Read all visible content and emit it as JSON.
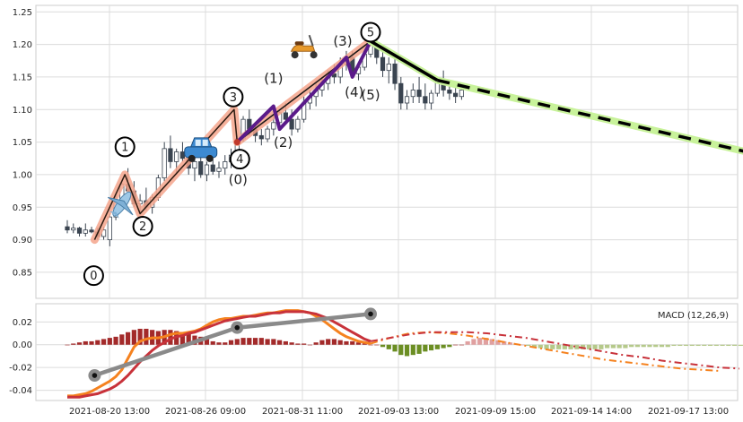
{
  "chart_data": [
    {
      "type": "candlestick",
      "panel": "price",
      "ylim": [
        0.81,
        1.26
      ],
      "yticks": [
        0.85,
        0.9,
        0.95,
        1.0,
        1.05,
        1.1,
        1.15,
        1.2,
        1.25
      ],
      "grid": true,
      "candles_ohlc": [
        [
          0.92,
          0.93,
          0.91,
          0.915
        ],
        [
          0.915,
          0.925,
          0.91,
          0.918
        ],
        [
          0.918,
          0.92,
          0.905,
          0.91
        ],
        [
          0.91,
          0.925,
          0.905,
          0.915
        ],
        [
          0.915,
          0.92,
          0.91,
          0.912
        ],
        [
          0.912,
          0.918,
          0.9,
          0.905
        ],
        [
          0.905,
          0.92,
          0.9,
          0.915
        ],
        [
          0.9,
          0.94,
          0.89,
          0.935
        ],
        [
          0.935,
          0.97,
          0.93,
          0.96
        ],
        [
          0.96,
          0.99,
          0.95,
          0.985
        ],
        [
          0.985,
          1.01,
          0.97,
          0.975
        ],
        [
          0.975,
          0.99,
          0.95,
          0.955
        ],
        [
          0.955,
          0.97,
          0.94,
          0.96
        ],
        [
          0.96,
          0.98,
          0.945,
          0.95
        ],
        [
          0.95,
          0.97,
          0.94,
          0.965
        ],
        [
          0.965,
          1.0,
          0.96,
          0.995
        ],
        [
          0.995,
          1.05,
          0.99,
          1.04
        ],
        [
          1.04,
          1.06,
          1.01,
          1.02
        ],
        [
          1.02,
          1.04,
          1.0,
          1.035
        ],
        [
          1.035,
          1.05,
          1.02,
          1.025
        ],
        [
          1.025,
          1.04,
          1.0,
          1.01
        ],
        [
          1.01,
          1.03,
          0.99,
          1.02
        ],
        [
          1.02,
          1.03,
          0.995,
          1.0
        ],
        [
          1.0,
          1.02,
          0.99,
          1.015
        ],
        [
          1.015,
          1.025,
          1.0,
          1.005
        ],
        [
          1.005,
          1.02,
          0.995,
          1.01
        ],
        [
          1.01,
          1.03,
          1.0,
          1.02
        ],
        [
          1.02,
          1.04,
          1.01,
          1.03
        ],
        [
          1.03,
          1.06,
          1.02,
          1.055
        ],
        [
          1.055,
          1.09,
          1.05,
          1.085
        ],
        [
          1.085,
          1.1,
          1.06,
          1.07
        ],
        [
          1.07,
          1.08,
          1.05,
          1.06
        ],
        [
          1.06,
          1.07,
          1.045,
          1.055
        ],
        [
          1.055,
          1.075,
          1.05,
          1.07
        ],
        [
          1.07,
          1.09,
          1.06,
          1.08
        ],
        [
          1.08,
          1.1,
          1.07,
          1.095
        ],
        [
          1.095,
          1.11,
          1.08,
          1.085
        ],
        [
          1.085,
          1.1,
          1.06,
          1.07
        ],
        [
          1.07,
          1.09,
          1.065,
          1.085
        ],
        [
          1.085,
          1.12,
          1.08,
          1.11
        ],
        [
          1.11,
          1.13,
          1.1,
          1.12
        ],
        [
          1.12,
          1.14,
          1.105,
          1.13
        ],
        [
          1.13,
          1.15,
          1.12,
          1.14
        ],
        [
          1.14,
          1.16,
          1.13,
          1.155
        ],
        [
          1.155,
          1.17,
          1.14,
          1.15
        ],
        [
          1.15,
          1.18,
          1.14,
          1.17
        ],
        [
          1.17,
          1.19,
          1.16,
          1.18
        ],
        [
          1.18,
          1.19,
          1.15,
          1.155
        ],
        [
          1.155,
          1.17,
          1.145,
          1.165
        ],
        [
          1.165,
          1.19,
          1.16,
          1.185
        ],
        [
          1.185,
          1.21,
          1.18,
          1.2
        ],
        [
          1.2,
          1.215,
          1.17,
          1.18
        ],
        [
          1.18,
          1.19,
          1.15,
          1.16
        ],
        [
          1.16,
          1.18,
          1.14,
          1.17
        ],
        [
          1.17,
          1.18,
          1.13,
          1.14
        ],
        [
          1.14,
          1.15,
          1.1,
          1.11
        ],
        [
          1.11,
          1.13,
          1.1,
          1.12
        ],
        [
          1.12,
          1.14,
          1.11,
          1.13
        ],
        [
          1.13,
          1.15,
          1.11,
          1.12
        ],
        [
          1.12,
          1.14,
          1.1,
          1.11
        ],
        [
          1.11,
          1.13,
          1.1,
          1.125
        ],
        [
          1.125,
          1.15,
          1.12,
          1.145
        ],
        [
          1.145,
          1.16,
          1.12,
          1.13
        ],
        [
          1.13,
          1.14,
          1.115,
          1.125
        ],
        [
          1.125,
          1.14,
          1.11,
          1.12
        ],
        [
          1.12,
          1.135,
          1.115,
          1.13
        ]
      ],
      "elliott_waves": {
        "main": [
          {
            "label": "0",
            "bar": 4.5,
            "value": 0.9
          },
          {
            "label": "1",
            "bar": 9.5,
            "value": 1.0
          },
          {
            "label": "2",
            "bar": 12,
            "value": 0.94
          },
          {
            "label": "3",
            "bar": 27.5,
            "value": 1.1
          },
          {
            "label": "4",
            "bar": 28,
            "value": 1.05
          },
          {
            "label": "5",
            "bar": 50,
            "value": 1.205
          }
        ],
        "sub": [
          {
            "label": "(0)",
            "bar": 28,
            "value": 1.05
          },
          {
            "label": "(1)",
            "bar": 34,
            "value": 1.105
          },
          {
            "label": "(2)",
            "bar": 35,
            "value": 1.07
          },
          {
            "label": "(3)",
            "bar": 46,
            "value": 1.18
          },
          {
            "label": "(4)",
            "bar": 47,
            "value": 1.15
          },
          {
            "label": "(5)",
            "bar": 50,
            "value": 1.205
          }
        ],
        "projection": [
          {
            "bar": 50,
            "value": 1.205
          },
          {
            "bar": 61,
            "value": 1.145
          },
          {
            "bar": 112,
            "value": 1.035
          }
        ]
      },
      "emoji_markers": [
        {
          "icon": "airplane",
          "bar": 9,
          "value": 0.955
        },
        {
          "icon": "car",
          "bar": 22,
          "value": 1.04
        },
        {
          "icon": "scooter",
          "bar": 39,
          "value": 1.195
        }
      ]
    },
    {
      "type": "macd",
      "panel": "indicator",
      "legend": "MACD (12,26,9)",
      "ylim": [
        -0.049,
        0.036
      ],
      "yticks": [
        -0.04,
        -0.02,
        0.0,
        0.02
      ],
      "xticks": [
        "2021-08-20 13:00",
        "2021-08-26 09:00",
        "2021-08-31 11:00",
        "2021-09-03 13:00",
        "2021-09-09 15:00",
        "2021-09-14 14:00",
        "2021-09-17 13:00"
      ],
      "histogram": [
        0.0,
        0.001,
        0.002,
        0.003,
        0.003,
        0.004,
        0.005,
        0.006,
        0.007,
        0.009,
        0.011,
        0.013,
        0.014,
        0.014,
        0.013,
        0.012,
        0.013,
        0.013,
        0.012,
        0.011,
        0.01,
        0.008,
        0.007,
        0.005,
        0.003,
        0.002,
        0.002,
        0.004,
        0.005,
        0.006,
        0.006,
        0.006,
        0.006,
        0.005,
        0.005,
        0.004,
        0.003,
        0.002,
        0.001,
        0.001,
        0.0,
        0.002,
        0.004,
        0.005,
        0.005,
        0.004,
        0.003,
        0.003,
        0.002,
        0.001,
        0.0,
        0.0,
        -0.002,
        -0.004,
        -0.006,
        -0.009,
        -0.01,
        -0.009,
        -0.008,
        -0.006,
        -0.005,
        -0.004,
        -0.003,
        -0.002,
        0.0,
        0.0
      ],
      "histogram_forecast": [
        0.003,
        0.005,
        0.006,
        0.006,
        0.005,
        0.004,
        0.003,
        0.002,
        0.001,
        0.0,
        -0.001,
        -0.002,
        -0.003,
        -0.004,
        -0.004,
        -0.004,
        -0.004,
        -0.004,
        -0.004,
        -0.004,
        -0.004,
        -0.004,
        -0.004,
        -0.003,
        -0.003,
        -0.003,
        -0.003,
        -0.002,
        -0.002,
        -0.002,
        -0.002,
        -0.002,
        -0.002,
        -0.002,
        -0.001,
        -0.001,
        -0.001,
        -0.001,
        -0.001,
        -0.001,
        -0.001,
        -0.001,
        -0.001,
        -0.001,
        -0.001,
        -0.001
      ],
      "macd_line": [
        -0.045,
        -0.045,
        -0.044,
        -0.043,
        -0.041,
        -0.038,
        -0.035,
        -0.032,
        -0.028,
        -0.022,
        -0.012,
        -0.002,
        0.003,
        0.005,
        0.006,
        0.006,
        0.007,
        0.009,
        0.01,
        0.01,
        0.011,
        0.012,
        0.014,
        0.017,
        0.02,
        0.022,
        0.023,
        0.023,
        0.024,
        0.025,
        0.025,
        0.026,
        0.027,
        0.028,
        0.028,
        0.029,
        0.03,
        0.03,
        0.03,
        0.029,
        0.028,
        0.025,
        0.022,
        0.018,
        0.014,
        0.01,
        0.007,
        0.005,
        0.003,
        0.002,
        0.001
      ],
      "signal_line": [
        -0.046,
        -0.046,
        -0.046,
        -0.045,
        -0.044,
        -0.043,
        -0.041,
        -0.039,
        -0.036,
        -0.032,
        -0.027,
        -0.021,
        -0.015,
        -0.01,
        -0.005,
        -0.001,
        0.002,
        0.005,
        0.007,
        0.008,
        0.01,
        0.011,
        0.013,
        0.015,
        0.017,
        0.019,
        0.021,
        0.022,
        0.023,
        0.024,
        0.025,
        0.025,
        0.026,
        0.027,
        0.028,
        0.028,
        0.029,
        0.029,
        0.029,
        0.029,
        0.028,
        0.027,
        0.025,
        0.023,
        0.02,
        0.017,
        0.014,
        0.011,
        0.008,
        0.005,
        0.003
      ],
      "macd_forecast": [
        0.001,
        0.006,
        0.01,
        0.011,
        0.01,
        0.008,
        0.005,
        0.002,
        -0.001,
        -0.004,
        -0.007,
        -0.01,
        -0.013,
        -0.015,
        -0.017,
        -0.019,
        -0.021,
        -0.022,
        -0.023
      ],
      "signal_forecast": [
        0.003,
        0.006,
        0.009,
        0.011,
        0.011,
        0.011,
        0.01,
        0.008,
        0.006,
        0.003,
        0.0,
        -0.003,
        -0.006,
        -0.009,
        -0.011,
        -0.014,
        -0.016,
        -0.018,
        -0.02,
        -0.021
      ],
      "trend_markers": [
        {
          "bar": 4.5,
          "value": -0.027
        },
        {
          "bar": 28,
          "value": 0.015
        },
        {
          "bar": 50,
          "value": 0.027
        }
      ]
    }
  ]
}
